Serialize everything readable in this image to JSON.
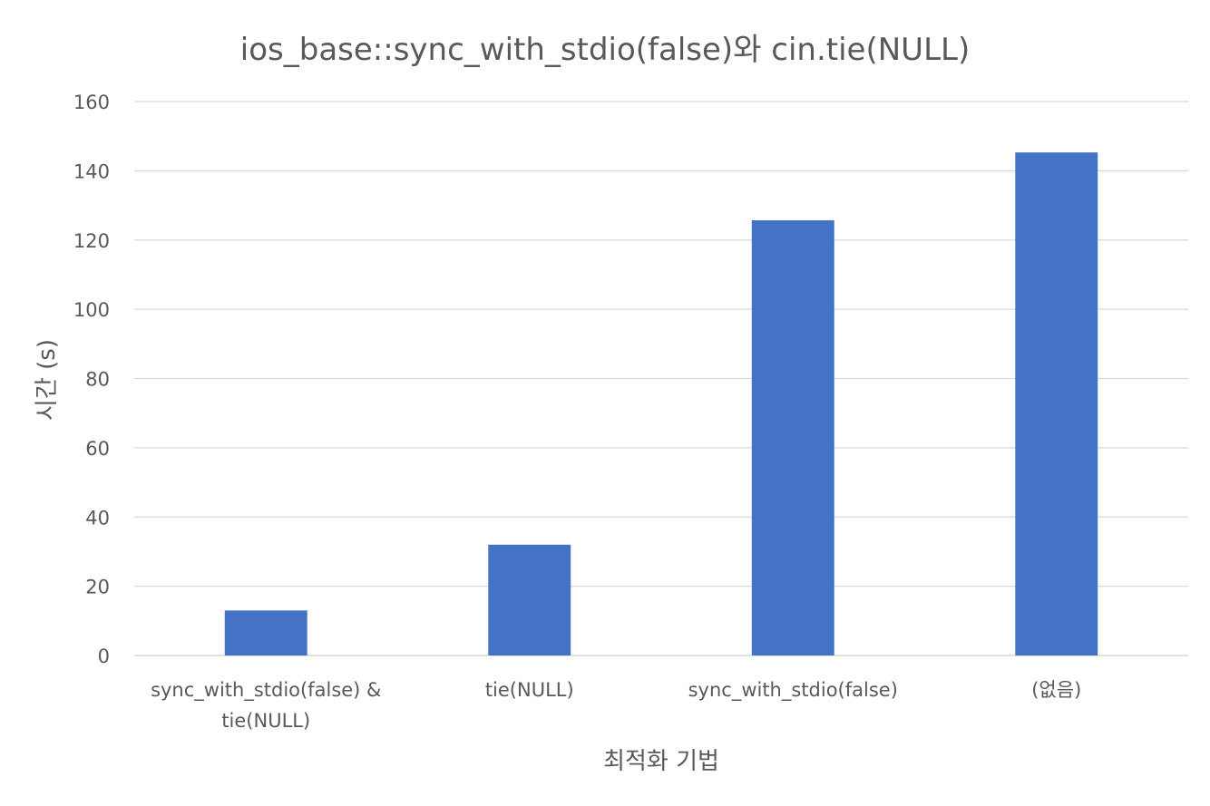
{
  "chart_data": {
    "type": "bar",
    "title": "ios_base::sync_with_stdio(false)와 cin.tie(NULL)",
    "xlabel": "최적화 기법",
    "ylabel": "시간 (s)",
    "categories": [
      [
        "sync_with_stdio(false) &",
        "tie(NULL)"
      ],
      [
        "tie(NULL)"
      ],
      [
        "sync_with_stdio(false)"
      ],
      [
        "(없음)"
      ]
    ],
    "series": [
      {
        "values": [
          13,
          32,
          125.7,
          145.3
        ]
      }
    ],
    "ylim": [
      0,
      160
    ],
    "yticks": [
      0,
      20,
      40,
      60,
      80,
      100,
      120,
      140,
      160
    ],
    "grid": true,
    "legend": "none",
    "bar_color": "#4472C4"
  }
}
